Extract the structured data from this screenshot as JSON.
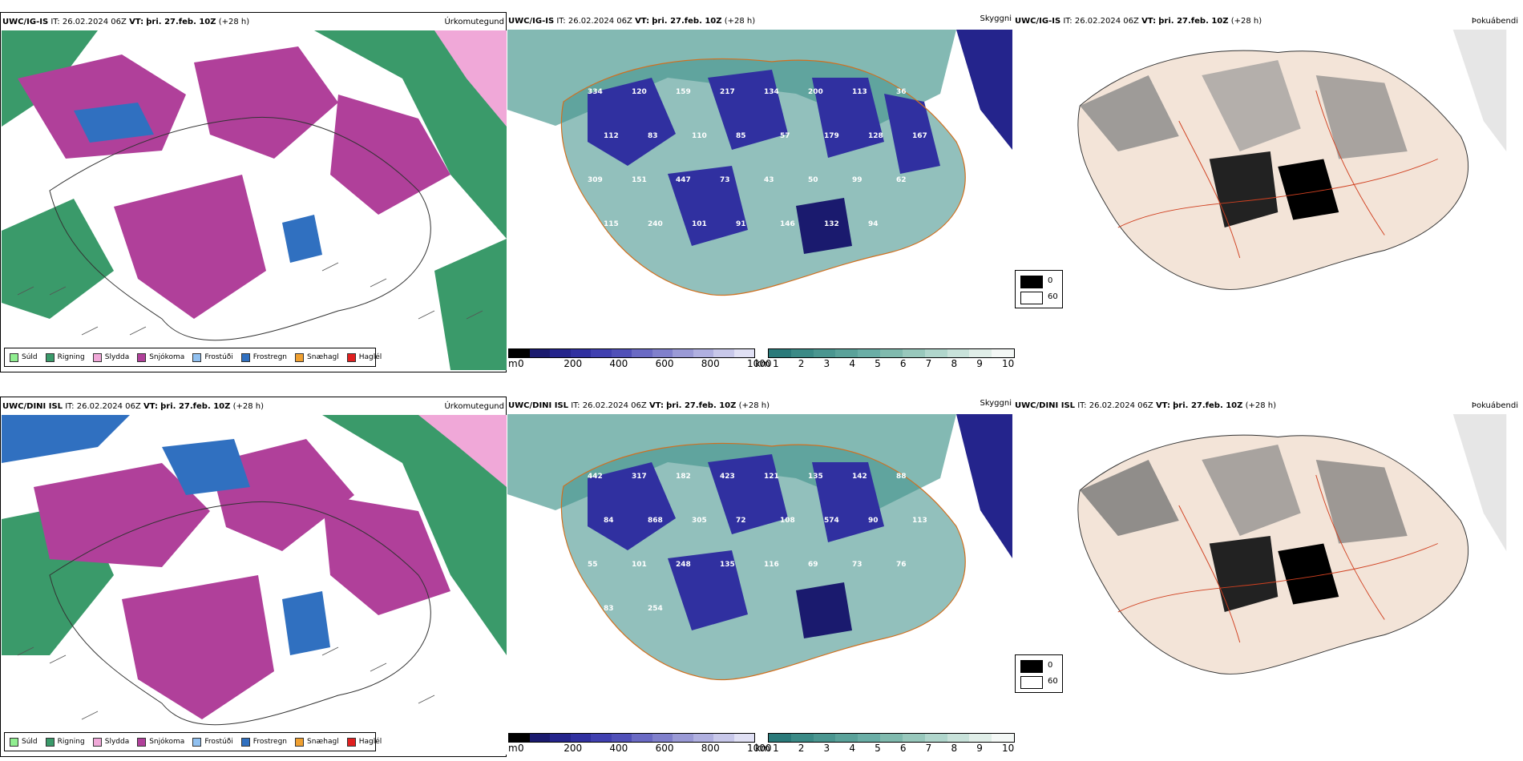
{
  "panels": [
    {
      "model": "UWC/IG-IS",
      "it_label": "IT:",
      "it_value": "26.02.2024 06Z",
      "vt_label": "VT:",
      "vt_value": "þri. 27.feb. 10Z",
      "lead": "(+28 h)",
      "left_title": "Úrkomutegund",
      "mid_title": "Skyggni",
      "right_title": "Þokuábendi"
    },
    {
      "model": "UWC/DINI ISL",
      "it_label": "IT:",
      "it_value": "26.02.2024 06Z",
      "vt_label": "VT:",
      "vt_value": "þri. 27.feb. 10Z",
      "lead": "(+28 h)",
      "left_title": "Úrkomutegund",
      "mid_title": "Skyggni",
      "right_title": "Þokuábendi"
    }
  ],
  "precip_legend": [
    {
      "label": "Súld",
      "color": "#90ee90"
    },
    {
      "label": "Rigning",
      "color": "#3a9a6a"
    },
    {
      "label": "Slydda",
      "color": "#f0a8d8"
    },
    {
      "label": "Snjókoma",
      "color": "#b0409a"
    },
    {
      "label": "Frostúði",
      "color": "#90c0f0"
    },
    {
      "label": "Frostregn",
      "color": "#3070c0"
    },
    {
      "label": "Snæhagl",
      "color": "#f0a030"
    },
    {
      "label": "Haglél",
      "color": "#e02020"
    }
  ],
  "cbar_m": {
    "unit": "m",
    "ticks": [
      "0",
      "200",
      "400",
      "600",
      "800",
      "1000"
    ],
    "colors": [
      "#000000",
      "#1a1a6e",
      "#24248c",
      "#3030a0",
      "#4040b0",
      "#5050b8",
      "#6a6ac4",
      "#8080cc",
      "#9a9ad6",
      "#b0b0e0",
      "#c8c8ea",
      "#e0e0f4"
    ]
  },
  "cbar_km": {
    "unit": "km",
    "ticks": [
      "1",
      "2",
      "3",
      "4",
      "5",
      "6",
      "7",
      "8",
      "9",
      "10"
    ],
    "colors": [
      "#2a7a7a",
      "#3a8a86",
      "#4a9690",
      "#5aa29a",
      "#6aaea6",
      "#80baae",
      "#98c8bc",
      "#b0d6cc",
      "#c8e2da",
      "#e0eee8",
      "#f4f8f6"
    ]
  },
  "fog_key": [
    "0",
    "60"
  ],
  "vis_labels_top": [
    "334",
    "120",
    "159",
    "217",
    "134",
    "200",
    "113",
    "36",
    "112",
    "83",
    "110",
    "85",
    "57",
    "179",
    "128",
    "167",
    "309",
    "151",
    "447",
    "73",
    "43",
    "50",
    "99",
    "62",
    "115",
    "240",
    "101",
    "91",
    "146",
    "132",
    "94"
  ],
  "vis_labels_bot": [
    "442",
    "317",
    "182",
    "423",
    "121",
    "135",
    "142",
    "88",
    "84",
    "868",
    "305",
    "72",
    "108",
    "574",
    "90",
    "113",
    "55",
    "101",
    "248",
    "135",
    "116",
    "69",
    "73",
    "76",
    "83",
    "254"
  ]
}
